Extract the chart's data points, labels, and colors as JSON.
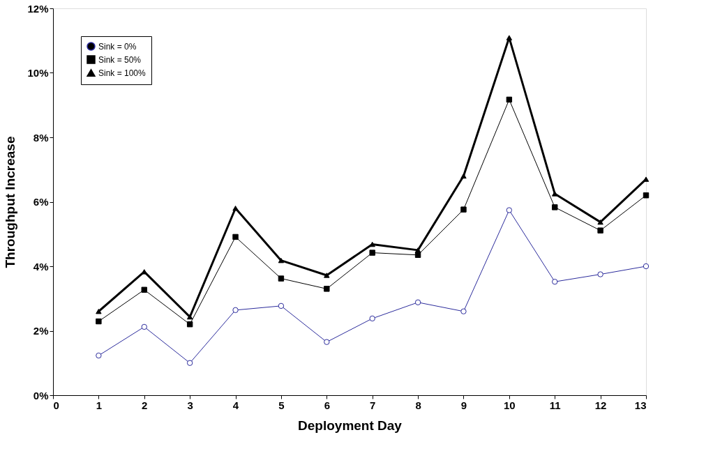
{
  "chart_data": {
    "type": "line",
    "xlabel": "Deployment Day",
    "ylabel": "Throughput Increase",
    "x": [
      1,
      2,
      3,
      4,
      5,
      6,
      7,
      8,
      9,
      10,
      11,
      12,
      13
    ],
    "series": [
      {
        "name": "Sink = 0%",
        "color": "#2b2b9c",
        "marker": "circle",
        "values": [
          1.23,
          2.12,
          1.0,
          2.64,
          2.77,
          1.65,
          2.38,
          2.88,
          2.6,
          5.74,
          3.52,
          3.75,
          4.0
        ]
      },
      {
        "name": "Sink = 50%",
        "color": "#000000",
        "marker": "square",
        "values": [
          2.29,
          3.27,
          2.2,
          4.91,
          3.62,
          3.3,
          4.42,
          4.35,
          5.76,
          9.17,
          5.83,
          5.11,
          6.2
        ]
      },
      {
        "name": "Sink = 100%",
        "color": "#000000",
        "marker": "triangle",
        "values": [
          2.6,
          3.83,
          2.43,
          5.8,
          4.18,
          3.72,
          4.68,
          4.5,
          6.8,
          11.09,
          6.25,
          5.37,
          6.7
        ]
      }
    ],
    "xlim": [
      0,
      13
    ],
    "xticks": [
      0,
      1,
      2,
      3,
      4,
      5,
      6,
      7,
      8,
      9,
      10,
      11,
      12,
      13
    ],
    "ylim": [
      0,
      12
    ],
    "yticks": [
      {
        "value": 0,
        "label": "0%"
      },
      {
        "value": 2,
        "label": "2%"
      },
      {
        "value": 4,
        "label": "4%"
      },
      {
        "value": 6,
        "label": "6%"
      },
      {
        "value": 8,
        "label": "8%"
      },
      {
        "value": 10,
        "label": "10%"
      },
      {
        "value": 12,
        "label": "12%"
      }
    ],
    "grid": false,
    "legend": "top left"
  }
}
